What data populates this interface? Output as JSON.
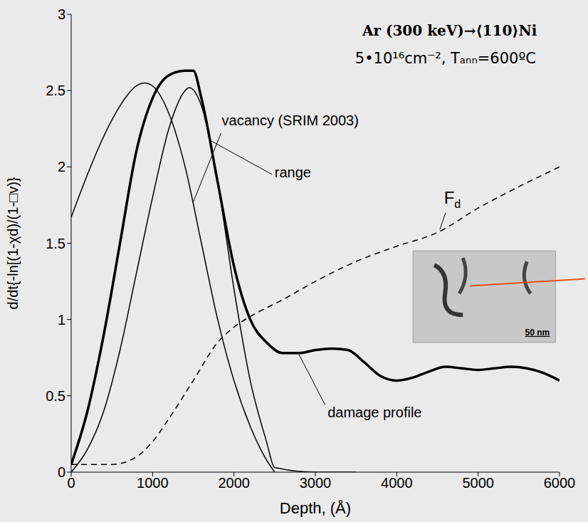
{
  "chart_data": {
    "type": "line",
    "title": "Ar (300 keV)→⟨110⟩Ni",
    "subtitle": "5•10¹⁶cm⁻², Tₐₙₙ=600ºC",
    "x_label": "Depth, (Å)",
    "y_label": "d/dt{-ln[(1-χd)/(1-□v)}",
    "xlim": [
      0,
      6000
    ],
    "xticks": [
      0,
      1000,
      2000,
      3000,
      4000,
      5000,
      6000
    ],
    "ylim": [
      0,
      3
    ],
    "yticks": [
      0,
      0.5,
      1,
      1.5,
      2,
      2.5,
      3
    ],
    "grid": false,
    "series": [
      {
        "name": "vacancy (SRIM 2003)",
        "color": "#000000",
        "line_style": "solid",
        "x": [
          0,
          200,
          400,
          600,
          800,
          900,
          1000,
          1200,
          1400,
          1600,
          1800,
          2000,
          2200,
          2400,
          2500
        ],
        "values": [
          1.67,
          1.95,
          2.2,
          2.4,
          2.53,
          2.55,
          2.53,
          2.35,
          2.0,
          1.5,
          1.0,
          0.6,
          0.3,
          0.08,
          0
        ]
      },
      {
        "name": "range",
        "color": "#000000",
        "line_style": "solid",
        "x": [
          0,
          200,
          400,
          600,
          800,
          1000,
          1200,
          1400,
          1450,
          1600,
          1800,
          2000,
          2200,
          2400,
          2500,
          3000,
          3500
        ],
        "values": [
          0,
          0.15,
          0.4,
          0.8,
          1.3,
          1.8,
          2.25,
          2.5,
          2.52,
          2.4,
          1.9,
          1.2,
          0.6,
          0.2,
          0.03,
          0,
          0
        ]
      },
      {
        "name": "damage profile",
        "color": "#000000",
        "line_style": "solid",
        "x": [
          0,
          200,
          400,
          600,
          800,
          1000,
          1200,
          1400,
          1500,
          1600,
          1800,
          2000,
          2200,
          2400,
          2600,
          2800,
          3000,
          3200,
          3400,
          3600,
          3800,
          4000,
          4200,
          4400,
          4600,
          4800,
          5000,
          5200,
          5400,
          5600,
          5800,
          6000
        ],
        "values": [
          0.05,
          0.4,
          0.9,
          1.5,
          2.1,
          2.45,
          2.6,
          2.63,
          2.63,
          2.45,
          1.9,
          1.35,
          1.0,
          0.85,
          0.78,
          0.78,
          0.8,
          0.81,
          0.8,
          0.72,
          0.63,
          0.6,
          0.62,
          0.66,
          0.69,
          0.68,
          0.67,
          0.68,
          0.69,
          0.68,
          0.65,
          0.6
        ]
      },
      {
        "name": "Fd",
        "color": "#000000",
        "line_style": "dashed",
        "x": [
          0,
          500,
          800,
          1000,
          1200,
          1500,
          1800,
          2000,
          2200,
          2600,
          3000,
          3500,
          4000,
          4500,
          5000,
          5500,
          6000
        ],
        "values": [
          0.05,
          0.05,
          0.1,
          0.2,
          0.35,
          0.6,
          0.85,
          0.95,
          1.02,
          1.13,
          1.25,
          1.38,
          1.48,
          1.57,
          1.73,
          1.87,
          2.0
        ]
      }
    ],
    "annotations": [
      {
        "text": "50 nm"
      }
    ]
  }
}
